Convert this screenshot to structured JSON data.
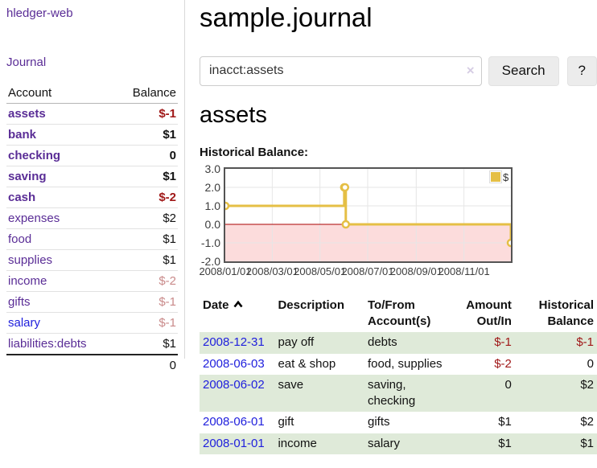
{
  "app": {
    "brand": "hledger-web",
    "nav_journal": "Journal"
  },
  "sidebar": {
    "account_header": "Account",
    "balance_header": "Balance",
    "rows": [
      {
        "name": "assets",
        "balance": "$-1"
      },
      {
        "name": "bank",
        "balance": "$1"
      },
      {
        "name": "checking",
        "balance": "0"
      },
      {
        "name": "saving",
        "balance": "$1"
      },
      {
        "name": "cash",
        "balance": "$-2"
      },
      {
        "name": "expenses",
        "balance": "$2"
      },
      {
        "name": "food",
        "balance": "$1"
      },
      {
        "name": "supplies",
        "balance": "$1"
      },
      {
        "name": "income",
        "balance": "$-2"
      },
      {
        "name": "gifts",
        "balance": "$-1"
      },
      {
        "name": "salary",
        "balance": "$-1"
      },
      {
        "name": "liabilities:debts",
        "balance": "$1"
      }
    ],
    "total": "0"
  },
  "main": {
    "title": "sample.journal",
    "search": {
      "value": "inacct:assets",
      "clear": "×",
      "search_button": "Search",
      "help_button": "?"
    },
    "account_title": "assets",
    "chart_title": "Historical Balance:"
  },
  "chart_data": {
    "type": "line",
    "step": true,
    "title": "Historical Balance:",
    "series": [
      {
        "name": "$",
        "color": "#e5bf45",
        "x": [
          "2008-01-01",
          "2008-06-01",
          "2008-06-02",
          "2008-06-03",
          "2008-12-31"
        ],
        "y": [
          1,
          2,
          2,
          0,
          -1
        ]
      }
    ],
    "xrange": [
      "2008-01-01",
      "2008-12-31"
    ],
    "ylim": [
      -2.0,
      3.0
    ],
    "yticks": [
      "3.0",
      "2.0",
      "1.0",
      "0.0",
      "-1.0",
      "-2.0"
    ],
    "xticks": [
      "2008/01/01",
      "2008/03/01",
      "2008/05/01",
      "2008/07/01",
      "2008/09/01",
      "2008/11/01"
    ],
    "legend": {
      "label": "$",
      "position": "top-right"
    },
    "grid": true,
    "negative_region_color": "#fcdcdc",
    "zero_line_color": "#aa0000",
    "grid_color": "#e6e6e6"
  },
  "register": {
    "headers": {
      "date": "Date",
      "description": "Description",
      "account": "To/From Account(s)",
      "amount": "Amount Out/In",
      "balance": "Historical Balance"
    },
    "rows": [
      {
        "date": "2008-12-31",
        "description": "pay off",
        "account": "debts",
        "amount": "$-1",
        "balance": "$-1"
      },
      {
        "date": "2008-06-03",
        "description": "eat & shop",
        "account": "food, supplies",
        "amount": "$-2",
        "balance": "0"
      },
      {
        "date": "2008-06-02",
        "description": "save",
        "account": "saving, checking",
        "amount": "0",
        "balance": "$2"
      },
      {
        "date": "2008-06-01",
        "description": "gift",
        "account": "gifts",
        "amount": "$1",
        "balance": "$2"
      },
      {
        "date": "2008-01-01",
        "description": "income",
        "account": "salary",
        "amount": "$1",
        "balance": "$1"
      }
    ]
  }
}
